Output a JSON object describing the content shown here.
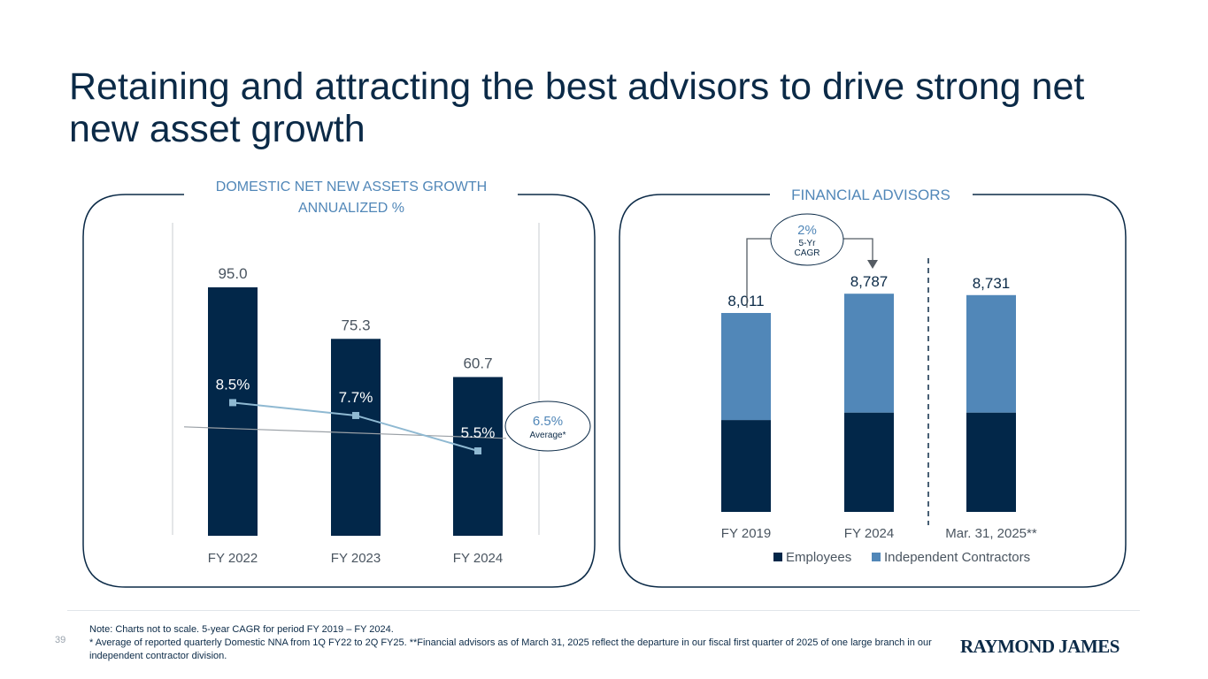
{
  "title": "Retaining and attracting the best advisors to drive strong net new asset growth",
  "page_number": "39",
  "colors": {
    "navy": "#022749",
    "steel": "#5187b8",
    "line": "#8fb9d2",
    "avg_line": "#9aa0a6",
    "panel_title": "#5187b8"
  },
  "chart_data": [
    {
      "type": "bar",
      "title_line1": "DOMESTIC NET NEW ASSETS GROWTH",
      "title_line2": "ANNUALIZED %",
      "categories": [
        "FY 2022",
        "FY 2023",
        "FY 2024"
      ],
      "values": [
        95.0,
        75.3,
        60.7
      ],
      "value_labels": [
        "95.0",
        "75.3",
        "60.7"
      ],
      "line_series": {
        "name": "Annualized growth %",
        "values": [
          8.5,
          7.7,
          5.5
        ],
        "labels": [
          "8.5%",
          "7.7%",
          "5.5%"
        ]
      },
      "average": {
        "value": 6.5,
        "label": "6.5%",
        "caption": "Average*"
      }
    },
    {
      "type": "bar",
      "stacked": true,
      "title": "FINANCIAL ADVISORS",
      "categories": [
        "FY 2019",
        "FY 2024",
        "Mar. 31, 2025**"
      ],
      "totals": [
        8011,
        8787,
        8731
      ],
      "total_labels": [
        "8,011",
        "8,787",
        "8,731"
      ],
      "series": [
        {
          "name": "Employees",
          "values": [
            3700,
            4000,
            4000
          ]
        },
        {
          "name": "Independent Contractors",
          "values": [
            4311,
            4787,
            4731
          ]
        }
      ],
      "legend": [
        "Employees",
        "Independent Contractors"
      ],
      "cagr": {
        "value": "2%",
        "line1": "5-Yr",
        "line2": "CAGR"
      }
    }
  ],
  "footnotes": {
    "line1": "Note: Charts not to scale. 5-year CAGR for period FY 2019 – FY 2024.",
    "line2": "* Average of reported quarterly Domestic NNA from 1Q FY22 to 2Q FY25. **Financial advisors as of March 31, 2025 reflect the departure in our fiscal first quarter of 2025 of one large branch in our independent contractor division."
  },
  "logo": "RAYMOND JAMES"
}
